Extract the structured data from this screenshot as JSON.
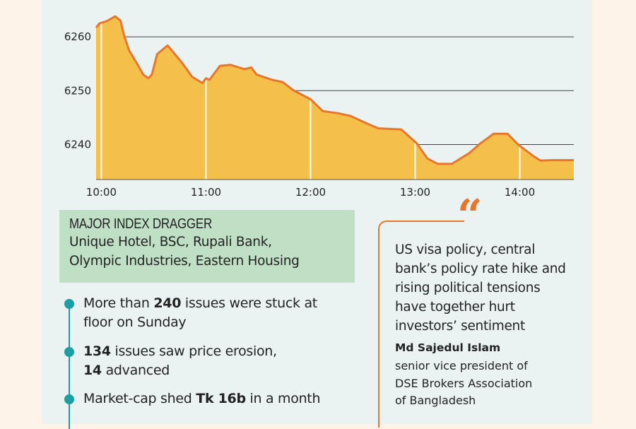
{
  "chart_data": {
    "type": "area",
    "title": "",
    "xlabel": "",
    "ylabel": "",
    "x_ticks": [
      "10:00",
      "11:00",
      "12:00",
      "13:00",
      "14:00"
    ],
    "y_ticks": [
      6240,
      6250,
      6260
    ],
    "ylim": [
      6233.5,
      6265
    ],
    "xlim": [
      "09:57",
      "14:31"
    ],
    "grid": "horizontal",
    "colors": {
      "line": "#e8762a",
      "fill": "#f5c04a",
      "tick_marks": "#ffffff"
    },
    "points": [
      [
        "09:57",
        6261.7
      ],
      [
        "09:59",
        6262.5
      ],
      [
        "10:03",
        6262.9
      ],
      [
        "10:08",
        6263.8
      ],
      [
        "10:11",
        6263.0
      ],
      [
        "10:13",
        6260.3
      ],
      [
        "10:16",
        6257.4
      ],
      [
        "10:20",
        6255.3
      ],
      [
        "10:24",
        6253.0
      ],
      [
        "10:27",
        6252.3
      ],
      [
        "10:29",
        6253.0
      ],
      [
        "10:32",
        6256.8
      ],
      [
        "10:38",
        6258.4
      ],
      [
        "10:46",
        6255.3
      ],
      [
        "10:52",
        6252.6
      ],
      [
        "10:58",
        6251.4
      ],
      [
        "11:00",
        6252.3
      ],
      [
        "11:02",
        6252.0
      ],
      [
        "11:08",
        6254.6
      ],
      [
        "11:14",
        6254.8
      ],
      [
        "11:22",
        6254.0
      ],
      [
        "11:26",
        6254.3
      ],
      [
        "11:29",
        6253.0
      ],
      [
        "11:38",
        6252.0
      ],
      [
        "11:44",
        6251.6
      ],
      [
        "11:50",
        6250.1
      ],
      [
        "12:00",
        6248.4
      ],
      [
        "12:07",
        6246.2
      ],
      [
        "12:16",
        6245.8
      ],
      [
        "12:23",
        6245.3
      ],
      [
        "12:33",
        6243.8
      ],
      [
        "12:39",
        6243.0
      ],
      [
        "12:52",
        6242.8
      ],
      [
        "13:01",
        6240.2
      ],
      [
        "13:07",
        6237.4
      ],
      [
        "13:13",
        6236.4
      ],
      [
        "13:21",
        6236.4
      ],
      [
        "13:31",
        6238.4
      ],
      [
        "13:37",
        6240.1
      ],
      [
        "13:45",
        6242.0
      ],
      [
        "13:53",
        6242.0
      ],
      [
        "13:59",
        6240.0
      ],
      [
        "14:08",
        6237.8
      ],
      [
        "14:12",
        6237.0
      ],
      [
        "14:18",
        6237.1
      ],
      [
        "14:31",
        6237.1
      ]
    ]
  },
  "dragger": {
    "title": "MAJOR INDEX DRAGGER",
    "line1": "Unique Hotel, BSC, Rupali Bank,",
    "line2": "Olympic Industries, Eastern Housing"
  },
  "bullets": {
    "b1_pre": "More than ",
    "b1_bold": "240",
    "b1_post": " issues were stuck at",
    "b1_line2": "floor on Sunday",
    "b2_bold": "134",
    "b2_post": " issues saw price erosion,",
    "b2_bold2": "14",
    "b2_post2": " advanced",
    "b3_pre": "Market-cap shed ",
    "b3_bold": "Tk 16b",
    "b3_post": " in a month"
  },
  "quote": {
    "mark": "“",
    "lines": [
      "US visa policy, central",
      "bank’s policy rate hike and",
      "rising political tensions",
      "have together hurt",
      "investors’ sentiment"
    ],
    "name": "Md Sajedul Islam",
    "role": [
      "senior vice president of",
      "DSE Brokers Association",
      "of Bangladesh"
    ]
  },
  "colors": {
    "page_bg": "#fdf3e8",
    "panel_bg": "#eaf3f2",
    "dragger_bg": "#c0e0c6",
    "accent_teal": "#1a9fa5",
    "accent_orange": "#e8762a"
  }
}
